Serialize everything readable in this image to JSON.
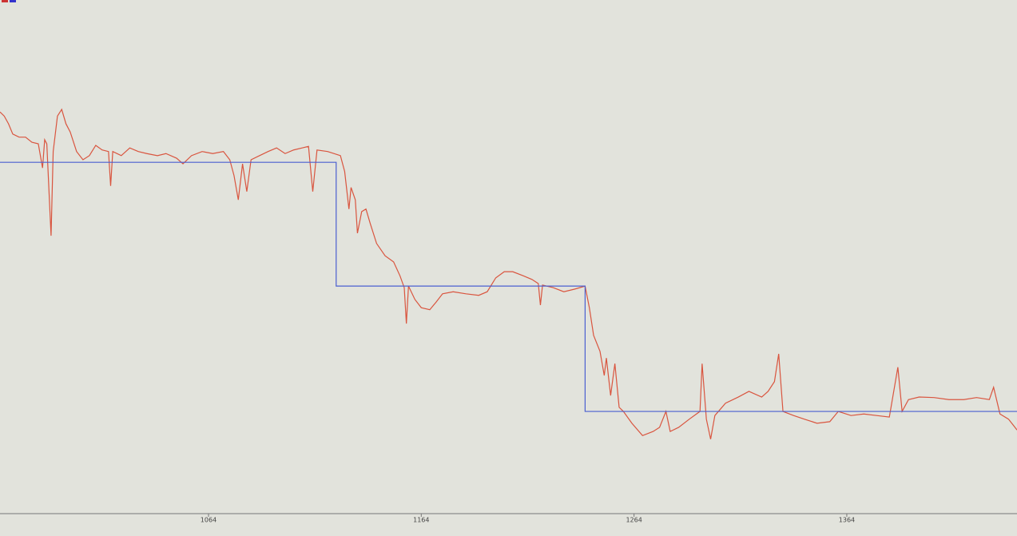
{
  "chart_data": {
    "type": "line",
    "xlim": [
      966,
      1444
    ],
    "xticks": [
      1064,
      1164,
      1264,
      1364
    ],
    "ylim": [
      0,
      100
    ],
    "grid": false,
    "series": [
      {
        "color": "#d9553f",
        "x": [
          966,
          968,
          970,
          972,
          975,
          978,
          981,
          984,
          986,
          987,
          988,
          990,
          991,
          993,
          995,
          997,
          999,
          1002,
          1005,
          1008,
          1011,
          1014,
          1017,
          1018,
          1019,
          1023,
          1027,
          1031,
          1035,
          1040,
          1044,
          1049,
          1052,
          1056,
          1061,
          1066,
          1071,
          1074,
          1076,
          1078,
          1080,
          1082,
          1084,
          1088,
          1092,
          1096,
          1100,
          1104,
          1108,
          1111,
          1113,
          1115,
          1120,
          1126,
          1128,
          1130,
          1131,
          1133,
          1134,
          1136,
          1138,
          1140,
          1143,
          1147,
          1151,
          1154,
          1156,
          1157,
          1158,
          1161,
          1164,
          1168,
          1171,
          1174,
          1179,
          1185,
          1191,
          1195,
          1199,
          1203,
          1207,
          1212,
          1216,
          1219,
          1220,
          1221,
          1226,
          1231,
          1236,
          1241,
          1243,
          1245,
          1248,
          1250,
          1251,
          1253,
          1255,
          1257,
          1259,
          1263,
          1268,
          1273,
          1276,
          1279,
          1281,
          1285,
          1290,
          1295,
          1296,
          1298,
          1300,
          1302,
          1307,
          1313,
          1318,
          1324,
          1327,
          1330,
          1332,
          1334,
          1339,
          1344,
          1350,
          1356,
          1360,
          1366,
          1372,
          1378,
          1384,
          1388,
          1390,
          1393,
          1398,
          1405,
          1412,
          1419,
          1425,
          1431,
          1433,
          1436,
          1440,
          1444
        ],
        "values": [
          78.2,
          77.4,
          75.9,
          73.9,
          73.3,
          73.3,
          72.3,
          72.0,
          67.3,
          72.8,
          72.0,
          54.1,
          70.5,
          77.4,
          78.7,
          75.9,
          74.3,
          70.5,
          68.9,
          69.7,
          71.7,
          70.8,
          70.5,
          63.8,
          70.5,
          69.7,
          71.2,
          70.5,
          70.1,
          69.7,
          70.1,
          69.2,
          68.1,
          69.7,
          70.5,
          70.1,
          70.5,
          68.9,
          65.8,
          61.1,
          68.1,
          62.7,
          68.9,
          69.7,
          70.5,
          71.2,
          70.1,
          70.8,
          71.2,
          71.5,
          62.7,
          70.8,
          70.5,
          69.7,
          66.6,
          59.3,
          63.5,
          61.1,
          54.6,
          58.8,
          59.3,
          56.5,
          52.6,
          50.2,
          49.0,
          46.3,
          44.0,
          37.0,
          44.3,
          41.7,
          40.1,
          39.7,
          41.2,
          42.8,
          43.2,
          42.8,
          42.5,
          43.2,
          45.9,
          47.1,
          47.1,
          46.3,
          45.6,
          44.8,
          40.6,
          44.5,
          44.0,
          43.2,
          43.7,
          44.3,
          40.1,
          34.7,
          31.6,
          26.9,
          30.3,
          23.0,
          29.2,
          20.7,
          19.9,
          17.6,
          15.2,
          16.0,
          16.8,
          19.9,
          16.0,
          16.8,
          18.4,
          19.9,
          29.2,
          18.4,
          14.5,
          19.1,
          21.5,
          22.7,
          23.8,
          22.7,
          23.8,
          25.7,
          31.1,
          19.9,
          19.1,
          18.4,
          17.6,
          17.9,
          19.9,
          19.1,
          19.4,
          19.1,
          18.8,
          28.5,
          19.9,
          22.2,
          22.7,
          22.6,
          22.2,
          22.2,
          22.6,
          22.2,
          24.6,
          19.4,
          18.4,
          16.3
        ]
      },
      {
        "color": "#4a5fd0",
        "x": [
          966,
          1124,
          1124,
          1241,
          1241,
          1444
        ],
        "values": [
          68.4,
          68.4,
          44.3,
          44.3,
          19.9,
          19.9
        ]
      }
    ]
  }
}
